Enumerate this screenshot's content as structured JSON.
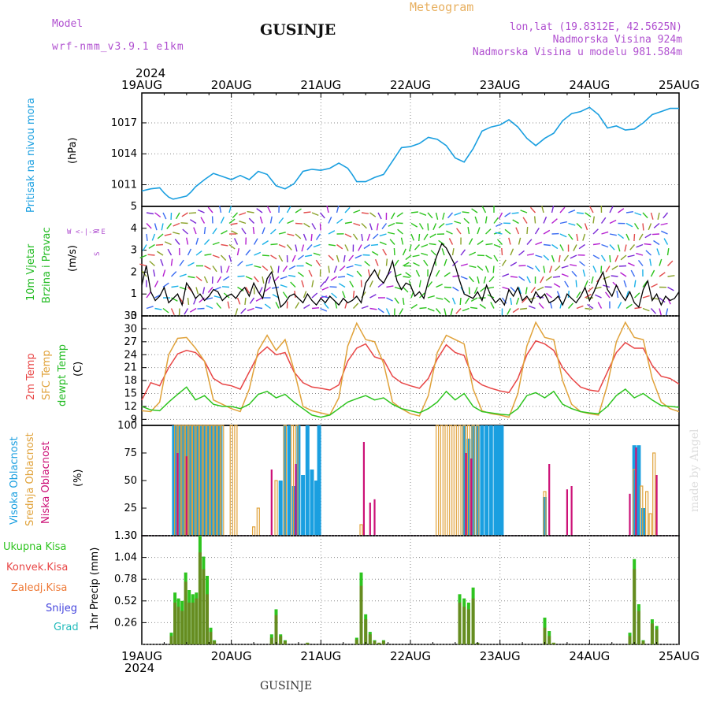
{
  "header": {
    "model_label": "Model",
    "model_name": "wrf-nmm_v3.9.1 e1km",
    "title": "GUSINJE",
    "meteogram": "Meteogram",
    "lonlat": "lon,lat (19.8312E, 42.5625N)",
    "altitude": "Nadmorska Visina 924m",
    "model_altitude": "Nadmorska Visina u modelu 981.584m",
    "year_top": "2024",
    "year_bottom": "2024",
    "footer": "GUSINJE",
    "watermark": "made by Angel"
  },
  "colors": {
    "pressure": "#1a9fe0",
    "wind_label": "#22bb22",
    "t2m": "#e84646",
    "sfc": "#e0a23a",
    "dew": "#2ec41f",
    "high_cloud": "#1a9fe0",
    "mid_cloud": "#e0a23a",
    "low_cloud": "#cc1177",
    "total_rain": "#2ec41f",
    "conv_rain": "#e84646",
    "frozen_rain": "#ee7733",
    "snow": "#4444dd",
    "hail": "#22bbbb",
    "header_purple": "#b050d0",
    "header_orange": "#e8b060"
  },
  "chart_data": [
    {
      "type": "line",
      "panel": "pressure",
      "ylabel_lines": [
        "Pritisak na nivou mora",
        "(hPa)"
      ],
      "yticks": [
        1011,
        1014,
        1017
      ],
      "ylim": [
        1008.9,
        1019.9
      ],
      "x": [
        0,
        0.1,
        0.2,
        0.25,
        0.3,
        0.35,
        0.4,
        0.5,
        0.55,
        0.6,
        0.7,
        0.8,
        0.9,
        1.0,
        1.1,
        1.2,
        1.3,
        1.4,
        1.5,
        1.6,
        1.7,
        1.8,
        1.9,
        2.0,
        2.1,
        2.2,
        2.3,
        2.35,
        2.4,
        2.5,
        2.6,
        2.7,
        2.8,
        2.9,
        3.0,
        3.1,
        3.2,
        3.3,
        3.4,
        3.5,
        3.6,
        3.7,
        3.8,
        3.9,
        4.0,
        4.1,
        4.2,
        4.3,
        4.4,
        4.5,
        4.6,
        4.7,
        4.8,
        4.9,
        5.0,
        5.1,
        5.2,
        5.3,
        5.4,
        5.5,
        5.6,
        5.7,
        5.8,
        5.9,
        6.0
      ],
      "y": [
        1010.4,
        1010.6,
        1010.7,
        1010.2,
        1009.8,
        1009.6,
        1009.7,
        1009.9,
        1010.3,
        1010.8,
        1011.5,
        1012.1,
        1011.8,
        1011.5,
        1011.9,
        1011.5,
        1012.3,
        1012.0,
        1010.9,
        1010.6,
        1011.1,
        1012.3,
        1012.5,
        1012.4,
        1012.6,
        1013.1,
        1012.6,
        1012.0,
        1011.3,
        1011.3,
        1011.7,
        1012.0,
        1013.3,
        1014.6,
        1014.7,
        1015.0,
        1015.6,
        1015.4,
        1014.8,
        1013.6,
        1013.2,
        1014.5,
        1016.2,
        1016.6,
        1016.8,
        1017.3,
        1016.6,
        1015.5,
        1014.8,
        1015.5,
        1016.0,
        1017.2,
        1017.9,
        1018.1,
        1018.5,
        1017.8,
        1016.5,
        1016.7,
        1016.3,
        1016.4,
        1017.0,
        1017.8,
        1018.1,
        1018.4,
        1018.4
      ]
    },
    {
      "type": "line",
      "panel": "wind",
      "ylabel_lines": [
        "10m Vjetar",
        "Brzina i Pravac",
        "(m/s)"
      ],
      "direction_legend": [
        "N",
        "W <-|-> E",
        "S"
      ],
      "yticks": [
        0,
        1,
        2,
        3,
        4,
        5
      ],
      "ylim": [
        0,
        5
      ],
      "x": [
        0,
        0.05,
        0.1,
        0.15,
        0.2,
        0.25,
        0.3,
        0.35,
        0.4,
        0.45,
        0.5,
        0.55,
        0.6,
        0.65,
        0.7,
        0.75,
        0.8,
        0.85,
        0.9,
        0.95,
        1.0,
        1.05,
        1.1,
        1.15,
        1.2,
        1.25,
        1.3,
        1.35,
        1.4,
        1.45,
        1.5,
        1.55,
        1.6,
        1.65,
        1.7,
        1.75,
        1.8,
        1.85,
        1.9,
        1.95,
        2.0,
        2.05,
        2.1,
        2.15,
        2.2,
        2.25,
        2.3,
        2.35,
        2.4,
        2.45,
        2.5,
        2.55,
        2.6,
        2.65,
        2.7,
        2.75,
        2.8,
        2.85,
        2.9,
        2.95,
        3.0,
        3.05,
        3.1,
        3.15,
        3.2,
        3.25,
        3.3,
        3.35,
        3.4,
        3.45,
        3.5,
        3.55,
        3.6,
        3.65,
        3.7,
        3.75,
        3.8,
        3.85,
        3.9,
        3.95,
        4.0,
        4.05,
        4.1,
        4.15,
        4.2,
        4.25,
        4.3,
        4.35,
        4.4,
        4.45,
        4.5,
        4.55,
        4.6,
        4.65,
        4.7,
        4.75,
        4.8,
        4.85,
        4.9,
        4.95,
        5.0,
        5.05,
        5.1,
        5.15,
        5.2,
        5.25,
        5.3,
        5.35,
        5.4,
        5.45,
        5.5,
        5.55,
        5.6,
        5.65,
        5.7,
        5.75,
        5.8,
        5.85,
        5.9,
        5.95,
        6.0
      ],
      "y": [
        1.4,
        2.3,
        1.1,
        0.7,
        0.9,
        1.3,
        0.6,
        0.8,
        1.0,
        0.5,
        1.5,
        1.2,
        0.8,
        1.0,
        0.7,
        0.9,
        1.2,
        1.1,
        0.7,
        0.9,
        1.0,
        0.8,
        1.1,
        1.3,
        0.9,
        1.5,
        1.1,
        0.8,
        1.7,
        2.0,
        1.3,
        0.4,
        0.6,
        0.9,
        1.0,
        0.8,
        0.6,
        1.0,
        0.7,
        0.5,
        0.8,
        0.6,
        0.9,
        0.7,
        0.5,
        0.8,
        0.6,
        0.7,
        0.9,
        0.6,
        1.5,
        1.8,
        2.1,
        1.7,
        1.5,
        1.9,
        2.5,
        1.6,
        1.2,
        1.5,
        1.4,
        0.9,
        1.1,
        0.8,
        1.6,
        2.2,
        2.8,
        3.3,
        3.1,
        2.7,
        2.3,
        1.6,
        1.0,
        0.9,
        0.8,
        1.1,
        0.7,
        1.4,
        0.9,
        0.6,
        0.8,
        0.5,
        1.2,
        0.9,
        1.3,
        0.7,
        0.9,
        0.6,
        1.1,
        0.8,
        1.0,
        0.6,
        0.7,
        0.9,
        0.5,
        1.0,
        0.8,
        0.6,
        0.9,
        1.3,
        0.7,
        1.1,
        1.6,
        2.0,
        1.2,
        0.9,
        1.4,
        1.0,
        0.7,
        1.1,
        0.6,
        0.4,
        1.2,
        1.6,
        0.7,
        1.0,
        0.5,
        0.9,
        0.7,
        0.8,
        1.1
      ]
    },
    {
      "type": "line",
      "panel": "temperature",
      "ylabel_lines": [
        "2m Temp",
        "SFC Temp",
        "dewpt Temp",
        "(C)"
      ],
      "yticks": [
        9,
        12,
        15,
        18,
        21,
        24,
        27,
        30,
        33
      ],
      "ylim": [
        7.6,
        33
      ],
      "x": [
        0,
        0.1,
        0.2,
        0.3,
        0.4,
        0.5,
        0.6,
        0.7,
        0.8,
        0.9,
        1.0,
        1.1,
        1.2,
        1.3,
        1.4,
        1.5,
        1.6,
        1.7,
        1.8,
        1.9,
        2.0,
        2.1,
        2.2,
        2.3,
        2.4,
        2.5,
        2.6,
        2.7,
        2.8,
        2.9,
        3.0,
        3.1,
        3.2,
        3.3,
        3.4,
        3.5,
        3.6,
        3.7,
        3.8,
        3.9,
        4.0,
        4.1,
        4.2,
        4.3,
        4.4,
        4.5,
        4.6,
        4.7,
        4.8,
        4.9,
        5.0,
        5.1,
        5.2,
        5.3,
        5.4,
        5.5,
        5.6,
        5.7,
        5.8,
        5.9,
        6.0
      ],
      "series": [
        {
          "name": "2m Temp",
          "y": [
            13.5,
            17.5,
            16.8,
            21,
            24.2,
            25,
            24.5,
            22.5,
            18.5,
            17.2,
            16.8,
            16,
            20,
            24,
            25.8,
            24,
            24.5,
            20,
            17.5,
            16.5,
            16.2,
            15.8,
            17,
            22.5,
            25.5,
            26.5,
            23.5,
            22.8,
            19,
            17.5,
            16.8,
            16.2,
            18.5,
            23,
            26.3,
            24.5,
            23.8,
            18.5,
            17,
            16.2,
            15.6,
            15.2,
            18.5,
            24,
            27.2,
            26.5,
            25,
            21,
            18.5,
            16.5,
            15.8,
            15.5,
            20,
            24.5,
            26.8,
            25.5,
            25.5,
            21.5,
            19,
            18.5,
            17.2
          ]
        },
        {
          "name": "SFC Temp",
          "y": [
            11,
            10.8,
            13,
            24,
            27.8,
            28,
            25.5,
            22.5,
            13.5,
            12.5,
            11.5,
            10.8,
            16,
            25,
            28.5,
            25,
            27.5,
            20.5,
            12,
            11,
            10.5,
            10,
            14,
            26,
            31.3,
            27.5,
            27,
            22,
            13,
            11.5,
            10.3,
            9.8,
            14.5,
            24.5,
            28.5,
            27.5,
            26.5,
            16,
            11,
            10.3,
            10,
            9.5,
            15,
            26,
            31.5,
            28,
            27.5,
            18,
            12.5,
            10.8,
            10.3,
            10,
            17,
            27,
            31.5,
            28,
            27.5,
            18.5,
            13,
            11.5,
            10.8
          ]
        },
        {
          "name": "dewpt Temp",
          "y": [
            12,
            11.2,
            11,
            13,
            14.8,
            16.5,
            13.5,
            14.5,
            12.5,
            12,
            12,
            11.5,
            12.5,
            14.8,
            15.5,
            14,
            14.8,
            13,
            11.5,
            10,
            9.5,
            10,
            11.5,
            13,
            13.8,
            14.5,
            13.5,
            14,
            12.5,
            11.5,
            11,
            10.5,
            11.5,
            13,
            15.5,
            13.5,
            15,
            12,
            10.8,
            10.5,
            10.2,
            10,
            11.5,
            14.5,
            15.2,
            14,
            15.5,
            12.5,
            11.5,
            10.8,
            10.5,
            10.3,
            12,
            14.5,
            16,
            14,
            15,
            13.5,
            12.2,
            12,
            11.8
          ]
        }
      ]
    },
    {
      "type": "bar",
      "panel": "clouds",
      "ylabel_lines": [
        "Visoka Oblacnost",
        "Srednja Oblacnost",
        "Niska Oblacnost",
        "(%)"
      ],
      "yticks": [
        0,
        25,
        50,
        75,
        100
      ],
      "ylim": [
        0,
        100
      ],
      "series": [
        {
          "name": "Visoka Oblacnost",
          "x": [
            0.36,
            0.4,
            0.44,
            0.48,
            0.52,
            0.56,
            0.6,
            0.64,
            0.68,
            0.72,
            0.76,
            0.8,
            0.84,
            0.88,
            1.55,
            1.6,
            1.65,
            1.7,
            1.75,
            1.8,
            1.85,
            1.9,
            1.95,
            1.98,
            3.6,
            3.65,
            3.7,
            3.75,
            3.8,
            3.85,
            3.9,
            3.95,
            3.98,
            4.02,
            4.5,
            5.5,
            5.55,
            5.6
          ],
          "values": [
            100,
            100,
            100,
            100,
            100,
            100,
            100,
            100,
            100,
            100,
            100,
            100,
            100,
            100,
            50,
            100,
            100,
            45,
            100,
            55,
            100,
            60,
            50,
            100,
            100,
            88,
            100,
            100,
            100,
            100,
            100,
            100,
            100,
            100,
            35,
            82,
            82,
            25
          ]
        },
        {
          "name": "Srednja Oblacnost",
          "x": [
            0.38,
            0.42,
            0.46,
            0.5,
            0.54,
            0.58,
            0.62,
            0.66,
            0.7,
            0.74,
            0.78,
            0.82,
            0.86,
            0.9,
            1.0,
            1.05,
            1.25,
            1.3,
            1.5,
            1.6,
            1.68,
            1.73,
            2.45,
            3.3,
            3.35,
            3.4,
            3.45,
            3.5,
            3.55,
            3.6,
            3.65,
            3.7,
            3.75,
            4.5,
            5.5,
            5.58,
            5.64,
            5.68,
            5.72
          ],
          "values": [
            100,
            100,
            100,
            100,
            100,
            100,
            100,
            100,
            100,
            100,
            100,
            100,
            100,
            100,
            100,
            100,
            8,
            25,
            50,
            100,
            100,
            100,
            10,
            100,
            100,
            100,
            100,
            100,
            100,
            100,
            100,
            100,
            100,
            40,
            60,
            45,
            40,
            20,
            75
          ]
        },
        {
          "name": "Niska Oblacnost",
          "x": [
            0.4,
            0.5,
            1.45,
            1.72,
            2.48,
            2.55,
            2.6,
            3.62,
            3.68,
            4.55,
            4.75,
            4.8,
            5.45,
            5.52,
            5.75
          ],
          "values": [
            75,
            72,
            60,
            65,
            85,
            30,
            33,
            75,
            70,
            65,
            42,
            45,
            38,
            80,
            55
          ]
        }
      ]
    },
    {
      "type": "bar",
      "panel": "precipitation",
      "ylabel_lines": [
        "1hr Precip (mm)"
      ],
      "legend": [
        "Ukupna Kisa",
        "Konvek.Kisa",
        "Zaledj.Kisa",
        "Snijeg",
        "Grad"
      ],
      "yticks": [
        0.26,
        0.52,
        0.78,
        1.04,
        1.3
      ],
      "ylim": [
        0,
        1.3
      ],
      "x": [
        0.33,
        0.37,
        0.41,
        0.45,
        0.49,
        0.53,
        0.57,
        0.61,
        0.65,
        0.69,
        0.73,
        0.77,
        0.81,
        1.45,
        1.5,
        1.55,
        1.6,
        1.85,
        2.4,
        2.45,
        2.5,
        2.55,
        2.6,
        2.65,
        2.7,
        3.55,
        3.6,
        3.65,
        3.7,
        3.75,
        4.5,
        4.55,
        4.6,
        5.45,
        5.5,
        5.55,
        5.6,
        5.7,
        5.75
      ],
      "series": [
        {
          "name": "Ukupna Kisa",
          "values": [
            0.14,
            0.62,
            0.55,
            0.52,
            0.86,
            0.65,
            0.6,
            0.62,
            1.3,
            1.05,
            0.82,
            0.2,
            0.05,
            0.12,
            0.42,
            0.12,
            0.05,
            0.02,
            0.08,
            0.86,
            0.36,
            0.15,
            0.05,
            0.02,
            0.05,
            0.6,
            0.55,
            0.5,
            0.68,
            0.02,
            0.32,
            0.16,
            0.02,
            0.14,
            1.02,
            0.48,
            0.05,
            0.3,
            0.22
          ]
        },
        {
          "name": "Konvek.Kisa",
          "values": [
            0.1,
            0.5,
            0.45,
            0.4,
            0.75,
            0.5,
            0.5,
            0.55,
            1.1,
            0.9,
            0.6,
            0.15,
            0.04,
            0.08,
            0.35,
            0.1,
            0.04,
            0.02,
            0.06,
            0.7,
            0.3,
            0.12,
            0.04,
            0.02,
            0.04,
            0.5,
            0.45,
            0.42,
            0.55,
            0.02,
            0.2,
            0.1,
            0.02,
            0.1,
            0.9,
            0.4,
            0.04,
            0.25,
            0.18
          ]
        }
      ]
    }
  ],
  "xaxis": {
    "day_labels": [
      "19AUG",
      "20AUG",
      "21AUG",
      "22AUG",
      "23AUG",
      "24AUG",
      "25AUG"
    ]
  }
}
